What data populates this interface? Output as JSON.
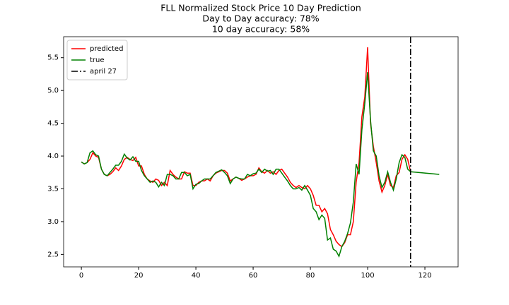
{
  "chart_data": {
    "type": "line",
    "title": [
      "FLL Normalized Stock Price 10 Day Prediction",
      "Day to Day accuracy: 78%",
      "10 day accuracy: 58%"
    ],
    "x": [
      0,
      1,
      2,
      3,
      4,
      5,
      6,
      7,
      8,
      9,
      10,
      11,
      12,
      13,
      14,
      15,
      16,
      17,
      18,
      19,
      20,
      21,
      22,
      23,
      24,
      25,
      26,
      27,
      28,
      29,
      30,
      31,
      32,
      33,
      34,
      35,
      36,
      37,
      38,
      39,
      40,
      41,
      42,
      43,
      44,
      45,
      46,
      47,
      48,
      49,
      50,
      51,
      52,
      53,
      54,
      55,
      56,
      57,
      58,
      59,
      60,
      61,
      62,
      63,
      64,
      65,
      66,
      67,
      68,
      69,
      70,
      71,
      72,
      73,
      74,
      75,
      76,
      77,
      78,
      79,
      80,
      81,
      82,
      83,
      84,
      85,
      86,
      87,
      88,
      89,
      90,
      91,
      92,
      93,
      94,
      95,
      96,
      97,
      98,
      99,
      100,
      101,
      102,
      103,
      104,
      105,
      106,
      107,
      108,
      109,
      110,
      111,
      112,
      113,
      114,
      115,
      125
    ],
    "series": [
      {
        "name": "predicted",
        "color": "#ff0000",
        "values": [
          3.91,
          3.88,
          3.9,
          3.95,
          4.05,
          4.0,
          3.98,
          3.8,
          3.72,
          3.7,
          3.72,
          3.76,
          3.82,
          3.78,
          3.85,
          3.95,
          3.98,
          3.95,
          3.93,
          3.98,
          3.85,
          3.85,
          3.72,
          3.65,
          3.62,
          3.6,
          3.65,
          3.63,
          3.55,
          3.6,
          3.55,
          3.78,
          3.72,
          3.68,
          3.65,
          3.65,
          3.76,
          3.74,
          3.74,
          3.55,
          3.55,
          3.6,
          3.62,
          3.62,
          3.65,
          3.62,
          3.7,
          3.74,
          3.76,
          3.78,
          3.78,
          3.74,
          3.62,
          3.65,
          3.68,
          3.66,
          3.63,
          3.65,
          3.68,
          3.7,
          3.7,
          3.72,
          3.82,
          3.76,
          3.74,
          3.78,
          3.74,
          3.76,
          3.72,
          3.78,
          3.8,
          3.74,
          3.68,
          3.6,
          3.55,
          3.52,
          3.55,
          3.52,
          3.5,
          3.55,
          3.5,
          3.4,
          3.25,
          3.25,
          3.15,
          3.2,
          3.12,
          2.88,
          2.8,
          2.7,
          2.65,
          2.62,
          2.68,
          2.8,
          2.8,
          3.0,
          3.6,
          3.9,
          4.6,
          4.9,
          5.66,
          4.5,
          4.15,
          3.9,
          3.62,
          3.45,
          3.55,
          3.72,
          3.55,
          3.52,
          3.7,
          3.75,
          3.95,
          4.02,
          3.95,
          3.76,
          null
        ]
      },
      {
        "name": "true",
        "color": "#008000",
        "values": [
          3.91,
          3.88,
          3.9,
          4.05,
          4.08,
          4.02,
          4.0,
          3.8,
          3.72,
          3.7,
          3.75,
          3.8,
          3.86,
          3.86,
          3.92,
          4.03,
          3.97,
          3.94,
          3.99,
          3.92,
          3.92,
          3.78,
          3.7,
          3.65,
          3.6,
          3.62,
          3.6,
          3.53,
          3.6,
          3.55,
          3.72,
          3.72,
          3.7,
          3.65,
          3.65,
          3.75,
          3.75,
          3.7,
          3.72,
          3.5,
          3.57,
          3.58,
          3.62,
          3.65,
          3.65,
          3.65,
          3.7,
          3.75,
          3.77,
          3.79,
          3.75,
          3.7,
          3.58,
          3.65,
          3.68,
          3.66,
          3.65,
          3.65,
          3.72,
          3.7,
          3.73,
          3.74,
          3.8,
          3.75,
          3.8,
          3.77,
          3.78,
          3.72,
          3.8,
          3.8,
          3.74,
          3.68,
          3.62,
          3.55,
          3.5,
          3.5,
          3.52,
          3.48,
          3.55,
          3.48,
          3.4,
          3.2,
          3.15,
          3.03,
          3.1,
          3.05,
          2.72,
          2.75,
          2.58,
          2.55,
          2.47,
          2.62,
          2.7,
          2.82,
          2.98,
          3.3,
          3.88,
          3.72,
          4.4,
          4.8,
          5.28,
          4.55,
          4.08,
          4.0,
          3.7,
          3.52,
          3.6,
          3.76,
          3.6,
          3.48,
          3.65,
          3.9,
          4.02,
          3.98,
          3.8,
          3.76,
          3.72
        ]
      }
    ],
    "vlines": [
      {
        "x": 115,
        "name": "april 27",
        "color": "#000000"
      }
    ],
    "xlim": [
      -6.2,
      131.6
    ],
    "xticks": [
      0,
      20,
      40,
      60,
      80,
      100,
      120
    ],
    "ylim": [
      2.31,
      5.82
    ],
    "yticks": [
      2.5,
      {
        "value": 3,
        "label": "3.0"
      },
      3.5,
      {
        "value": 4,
        "label": "4.0"
      },
      4.5,
      {
        "value": 5,
        "label": "5.0"
      },
      5.5
    ],
    "legend": "upper left"
  }
}
